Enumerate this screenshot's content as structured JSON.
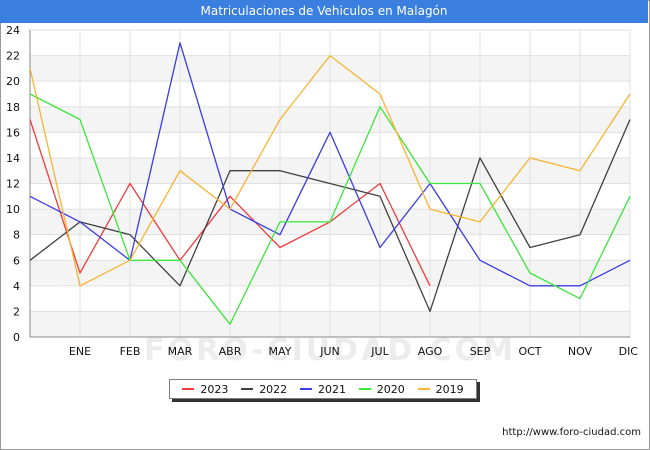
{
  "chart_data": {
    "type": "line",
    "title": "Matriculaciones de Vehiculos en Malagón",
    "categories": [
      "",
      "ENE",
      "FEB",
      "MAR",
      "ABR",
      "MAY",
      "JUN",
      "JUL",
      "AGO",
      "SEP",
      "OCT",
      "NOV",
      "DIC"
    ],
    "ylim": [
      0,
      24
    ],
    "yticks": [
      0,
      2,
      4,
      6,
      8,
      10,
      12,
      14,
      16,
      18,
      20,
      22,
      24
    ],
    "xlabel": "",
    "ylabel": "",
    "series": [
      {
        "name": "2023",
        "color": "#f03c3c",
        "values": [
          17,
          5,
          12,
          6,
          11,
          7,
          9,
          12,
          4,
          null,
          null,
          null,
          null
        ]
      },
      {
        "name": "2022",
        "color": "#404040",
        "values": [
          6,
          9,
          8,
          4,
          13,
          13,
          12,
          11,
          2,
          14,
          7,
          8,
          17
        ]
      },
      {
        "name": "2021",
        "color": "#3c3ce6",
        "values": [
          11,
          9,
          6,
          23,
          10,
          8,
          16,
          7,
          12,
          6,
          4,
          4,
          6
        ]
      },
      {
        "name": "2020",
        "color": "#3ce63c",
        "values": [
          19,
          17,
          6,
          6,
          1,
          9,
          9,
          18,
          12,
          12,
          5,
          3,
          11
        ]
      },
      {
        "name": "2019",
        "color": "#f7b431",
        "values": [
          21,
          4,
          6,
          13,
          10,
          17,
          22,
          19,
          10,
          9,
          14,
          13,
          19
        ]
      }
    ]
  },
  "watermark": "FORO-CIUDAD.COM",
  "source": "http://www.foro-ciudad.com"
}
